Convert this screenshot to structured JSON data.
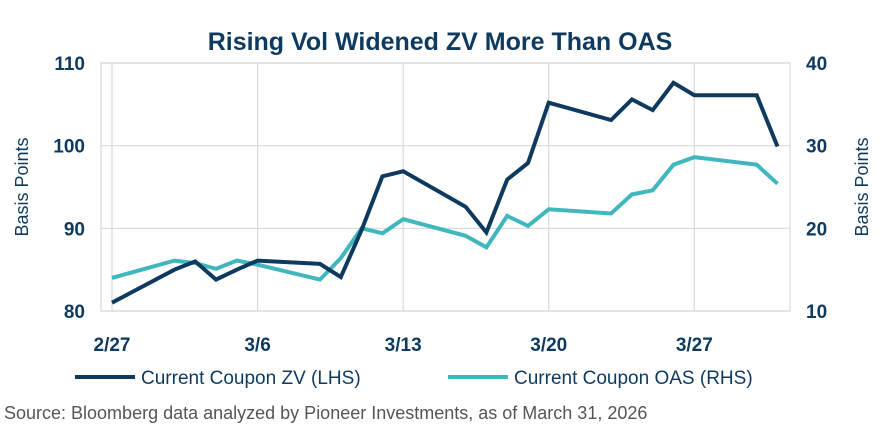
{
  "chart_data": {
    "type": "line",
    "title": "Rising Vol Widened ZV More Than OAS",
    "ylabel_left": "Basis Points",
    "ylabel_right": "Basis Points",
    "ylim_left": [
      80,
      110
    ],
    "ylim_right": [
      10,
      40
    ],
    "yticks_left": [
      "80",
      "90",
      "100",
      "110"
    ],
    "yticks_right": [
      "10",
      "20",
      "30",
      "40"
    ],
    "x_tick_labels": [
      "2/27",
      "3/6",
      "3/13",
      "3/20",
      "3/27"
    ],
    "x_tick_dates": [
      "2/27",
      "3/6",
      "3/13",
      "3/20",
      "3/27"
    ],
    "grid": true,
    "legend_position": "bottom",
    "series": [
      {
        "name": "Current Coupon ZV (LHS)",
        "axis": "left",
        "color": "#0e3a5f",
        "x": [
          "2/27",
          "3/2",
          "3/3",
          "3/4",
          "3/5",
          "3/6",
          "3/9",
          "3/10",
          "3/11",
          "3/12",
          "3/13",
          "3/16",
          "3/17",
          "3/18",
          "3/19",
          "3/20",
          "3/23",
          "3/24",
          "3/25",
          "3/26",
          "3/27",
          "3/30",
          "3/31"
        ],
        "values": [
          81.0,
          85.0,
          86.0,
          83.8,
          85.0,
          86.1,
          85.7,
          84.1,
          89.8,
          96.3,
          96.9,
          92.6,
          89.5,
          95.9,
          97.9,
          105.2,
          103.1,
          105.6,
          104.3,
          107.6,
          106.1,
          106.1,
          99.9
        ]
      },
      {
        "name": "Current Coupon OAS (RHS)",
        "axis": "right",
        "color": "#3fb7bd",
        "x": [
          "2/27",
          "3/2",
          "3/3",
          "3/4",
          "3/5",
          "3/6",
          "3/9",
          "3/10",
          "3/11",
          "3/12",
          "3/13",
          "3/16",
          "3/17",
          "3/18",
          "3/19",
          "3/20",
          "3/23",
          "3/24",
          "3/25",
          "3/26",
          "3/27",
          "3/30",
          "3/31"
        ],
        "values": [
          14.0,
          16.1,
          15.8,
          15.1,
          16.1,
          15.6,
          13.8,
          16.4,
          20.0,
          19.4,
          21.1,
          19.1,
          17.7,
          21.5,
          20.3,
          22.3,
          21.8,
          24.1,
          24.6,
          27.7,
          28.6,
          27.7,
          25.4
        ]
      }
    ]
  },
  "legend": {
    "items": [
      "Current Coupon ZV (LHS)",
      "Current Coupon OAS (RHS)"
    ]
  },
  "source": "Source: Bloomberg data analyzed by Pioneer Investments, as of March 31, 2026"
}
